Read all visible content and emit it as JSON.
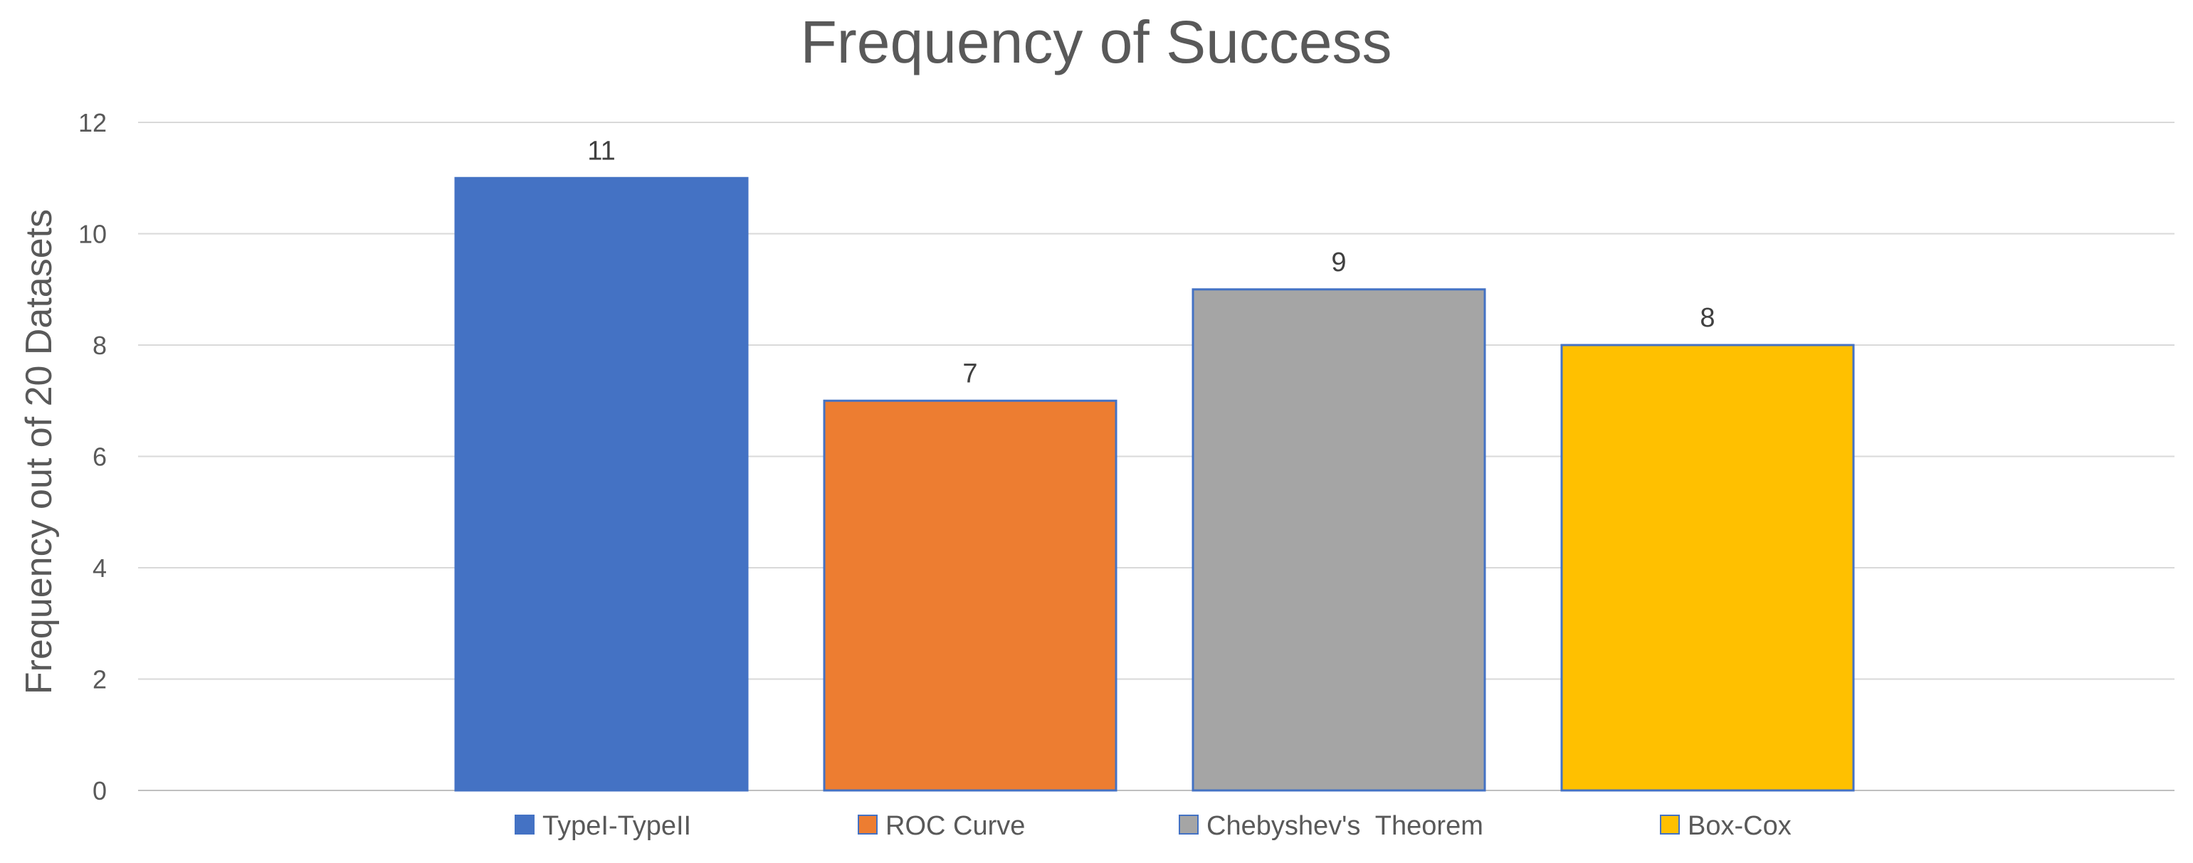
{
  "chart_data": {
    "type": "bar",
    "title": "Frequency of Success",
    "xlabel": "",
    "ylabel": "Frequency out of 20 Datasets",
    "ylim": [
      0,
      12
    ],
    "yticks": [
      0,
      2,
      4,
      6,
      8,
      10,
      12
    ],
    "grid": true,
    "legend_position": "bottom",
    "series": [
      {
        "name": "TypeI-TypeII",
        "value": 11,
        "color": "#4472C4"
      },
      {
        "name": "ROC Curve",
        "value": 7,
        "color": "#ED7D31"
      },
      {
        "name": "Chebyshev's  Theorem",
        "value": 9,
        "color": "#A5A5A5"
      },
      {
        "name": "Box-Cox",
        "value": 8,
        "color": "#FFC000"
      }
    ],
    "bar_border_color": "#4472C4"
  }
}
